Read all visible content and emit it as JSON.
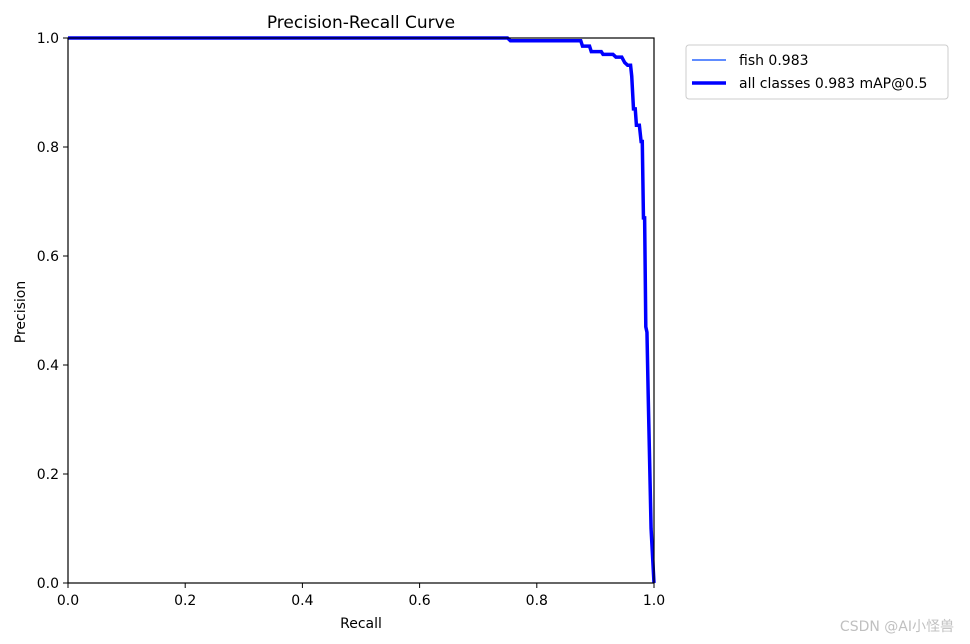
{
  "chart_data": {
    "type": "line",
    "title": "Precision-Recall Curve",
    "xlabel": "Recall",
    "ylabel": "Precision",
    "xlim": [
      0.0,
      1.0
    ],
    "ylim": [
      0.0,
      1.0
    ],
    "xticks": [
      "0.0",
      "0.2",
      "0.4",
      "0.6",
      "0.8",
      "1.0"
    ],
    "yticks": [
      "0.0",
      "0.2",
      "0.4",
      "0.6",
      "0.8",
      "1.0"
    ],
    "grid": false,
    "legend_position": "outside upper right",
    "series": [
      {
        "name": "fish 0.983",
        "color": "#0047ff",
        "style": "thin",
        "x": [
          0.0,
          0.75,
          0.755,
          0.875,
          0.878,
          0.89,
          0.893,
          0.91,
          0.913,
          0.93,
          0.935,
          0.945,
          0.95,
          0.955,
          0.96,
          0.962,
          0.965,
          0.968,
          0.97,
          0.975,
          0.978,
          0.98,
          0.982,
          0.984,
          0.986,
          0.988,
          0.99,
          0.992,
          0.995,
          1.0
        ],
        "y": [
          1.0,
          1.0,
          0.995,
          0.995,
          0.985,
          0.985,
          0.975,
          0.975,
          0.97,
          0.97,
          0.965,
          0.965,
          0.955,
          0.95,
          0.95,
          0.93,
          0.87,
          0.87,
          0.84,
          0.84,
          0.81,
          0.81,
          0.67,
          0.67,
          0.47,
          0.46,
          0.35,
          0.25,
          0.1,
          0.0
        ]
      },
      {
        "name": "all classes 0.983 mAP@0.5",
        "color": "#0000ff",
        "style": "thick",
        "x": [
          0.0,
          0.75,
          0.755,
          0.875,
          0.878,
          0.89,
          0.893,
          0.91,
          0.913,
          0.93,
          0.935,
          0.945,
          0.95,
          0.955,
          0.96,
          0.962,
          0.965,
          0.968,
          0.97,
          0.975,
          0.978,
          0.98,
          0.982,
          0.984,
          0.986,
          0.988,
          0.99,
          0.992,
          0.995,
          1.0
        ],
        "y": [
          1.0,
          1.0,
          0.995,
          0.995,
          0.985,
          0.985,
          0.975,
          0.975,
          0.97,
          0.97,
          0.965,
          0.965,
          0.955,
          0.95,
          0.95,
          0.93,
          0.87,
          0.87,
          0.84,
          0.84,
          0.81,
          0.81,
          0.67,
          0.67,
          0.47,
          0.46,
          0.35,
          0.25,
          0.1,
          0.0
        ]
      }
    ]
  },
  "watermark": "CSDN @AI小怪兽"
}
